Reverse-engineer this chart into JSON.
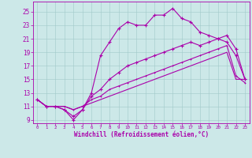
{
  "xlabel": "Windchill (Refroidissement éolien,°C)",
  "bg_color": "#cce8e8",
  "line_color": "#aa00aa",
  "xlim": [
    -0.5,
    23.5
  ],
  "ylim": [
    8.5,
    26.5
  ],
  "xticks": [
    0,
    1,
    2,
    3,
    4,
    5,
    6,
    7,
    8,
    9,
    10,
    11,
    12,
    13,
    14,
    15,
    16,
    17,
    18,
    19,
    20,
    21,
    22,
    23
  ],
  "yticks": [
    9,
    11,
    13,
    15,
    17,
    19,
    21,
    23,
    25
  ],
  "line1_x": [
    0,
    1,
    2,
    3,
    4,
    5,
    6,
    7,
    8,
    9,
    10,
    11,
    12,
    13,
    14,
    15,
    16,
    17,
    18,
    19,
    20,
    21,
    22,
    23
  ],
  "line1_y": [
    12.0,
    11.0,
    11.0,
    10.5,
    9.5,
    10.5,
    13.0,
    18.5,
    20.5,
    22.5,
    23.5,
    23.0,
    23.0,
    24.5,
    24.5,
    25.5,
    24.0,
    23.5,
    22.0,
    21.5,
    21.0,
    20.5,
    18.5,
    15.0
  ],
  "line2_x": [
    0,
    1,
    2,
    3,
    4,
    5,
    6,
    7,
    8,
    9,
    10,
    11,
    12,
    13,
    14,
    15,
    16,
    17,
    18,
    19,
    20,
    21,
    22,
    23
  ],
  "line2_y": [
    12.0,
    11.0,
    11.0,
    10.5,
    9.0,
    10.5,
    12.5,
    13.5,
    15.0,
    16.0,
    17.0,
    17.5,
    18.0,
    18.5,
    19.0,
    19.5,
    20.0,
    20.5,
    20.0,
    20.5,
    21.0,
    21.5,
    19.5,
    15.0
  ],
  "line3_x": [
    0,
    1,
    2,
    3,
    4,
    5,
    6,
    7,
    8,
    9,
    10,
    11,
    12,
    13,
    14,
    15,
    16,
    17,
    18,
    19,
    20,
    21,
    22,
    23
  ],
  "line3_y": [
    12.0,
    11.0,
    11.0,
    11.0,
    10.5,
    11.0,
    12.0,
    12.5,
    13.5,
    14.0,
    14.5,
    15.0,
    15.5,
    16.0,
    16.5,
    17.0,
    17.5,
    18.0,
    18.5,
    19.0,
    19.5,
    20.0,
    15.5,
    14.5
  ],
  "line4_x": [
    0,
    1,
    2,
    3,
    4,
    5,
    6,
    7,
    8,
    9,
    10,
    11,
    12,
    13,
    14,
    15,
    16,
    17,
    18,
    19,
    20,
    21,
    22,
    23
  ],
  "line4_y": [
    12.0,
    11.0,
    11.0,
    11.0,
    10.5,
    11.0,
    11.5,
    12.0,
    12.5,
    13.0,
    13.5,
    14.0,
    14.5,
    15.0,
    15.5,
    16.0,
    16.5,
    17.0,
    17.5,
    18.0,
    18.5,
    19.0,
    15.0,
    15.0
  ]
}
